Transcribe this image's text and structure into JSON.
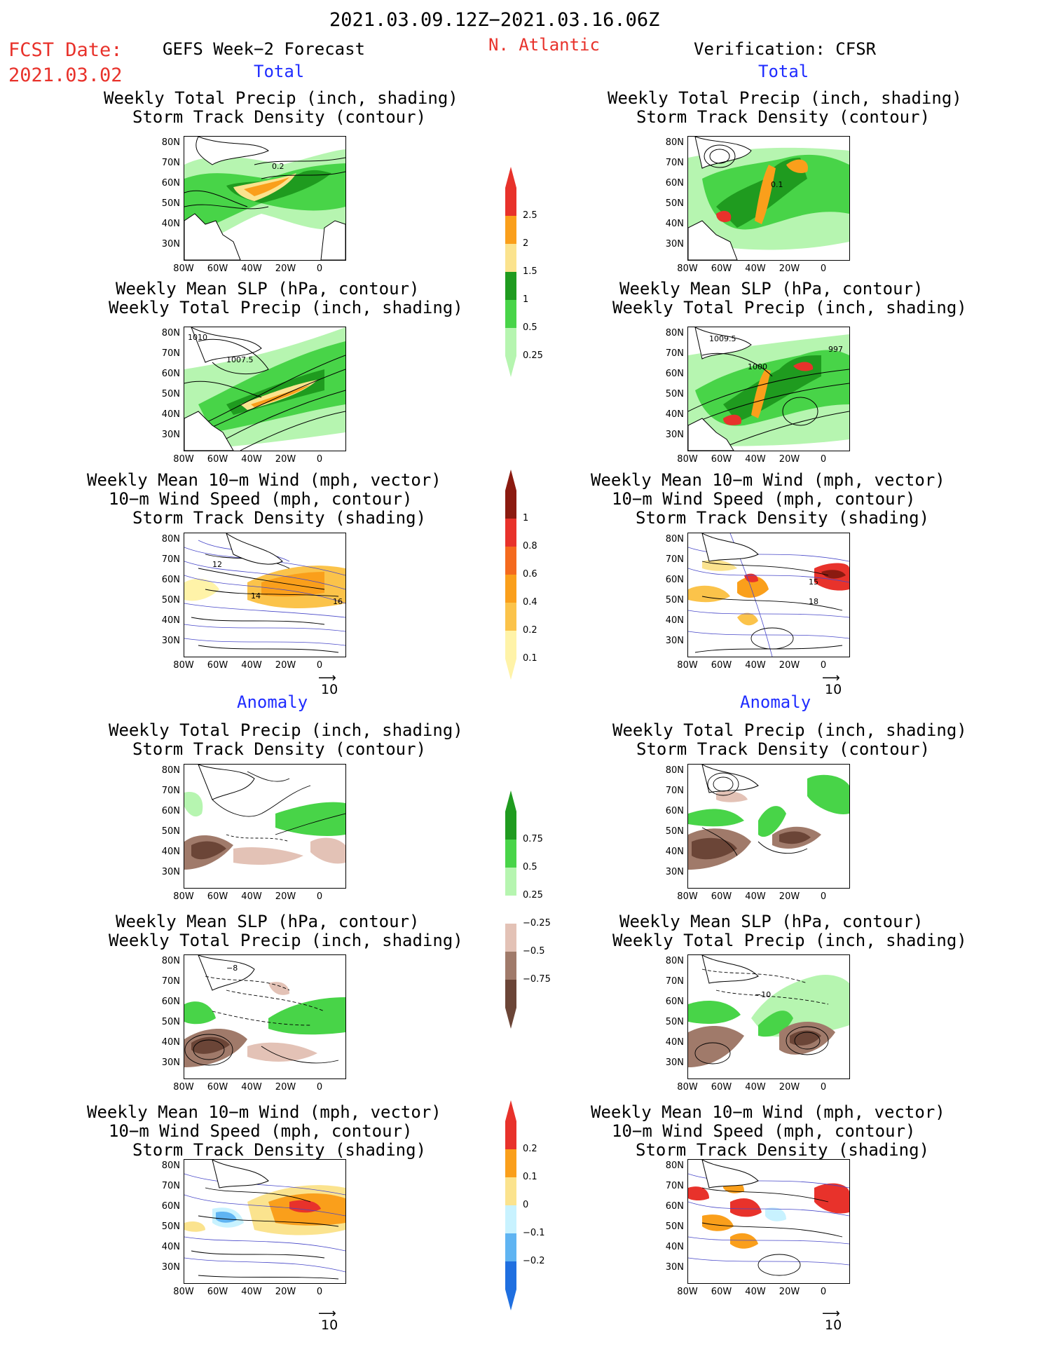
{
  "header": {
    "date_range": "2021.03.09.12Z−2021.03.16.06Z",
    "fcst_label": "FCST Date:",
    "fcst_date": "2021.03.02",
    "forecast_title": "GEFS Week−2 Forecast",
    "region": "N. Atlantic",
    "verification": "Verification: CFSR"
  },
  "sections": {
    "total": "Total",
    "anomaly": "Anomaly"
  },
  "panel_titles": {
    "precip_track": [
      "Weekly Total Precip (inch, shading)",
      "Storm Track Density (contour)"
    ],
    "slp_precip": [
      "Weekly Mean SLP (hPa, contour)",
      "Weekly Total Precip (inch, shading)"
    ],
    "wind": [
      "Weekly Mean 10−m Wind (mph, vector)",
      "10−m Wind Speed (mph, contour)",
      "Storm Track Density (shading)"
    ]
  },
  "axes": {
    "lat_labels": [
      "80N",
      "70N",
      "60N",
      "50N",
      "40N",
      "30N"
    ],
    "lon_labels": [
      "80W",
      "60W",
      "40W",
      "20W",
      "0"
    ]
  },
  "vector_ref": "10",
  "colorbars": {
    "precip_total": {
      "labels": [
        "2.5",
        "2",
        "1.5",
        "1",
        "0.5",
        "0.25"
      ],
      "colors": [
        "#e8322b",
        "#fa9f1b",
        "#fbe38e",
        "#1f9b1f",
        "#48d448",
        "#b6f5b0"
      ]
    },
    "track_total": {
      "labels": [
        "1",
        "0.8",
        "0.6",
        "0.4",
        "0.2",
        "0.1"
      ],
      "colors": [
        "#8b1a10",
        "#e8322b",
        "#f46a1e",
        "#fa9f1b",
        "#fbc34a",
        "#fff3a8"
      ]
    },
    "precip_anom": {
      "labels": [
        "0.75",
        "0.5",
        "0.25",
        "−0.25",
        "−0.5",
        "−0.75"
      ],
      "colors": [
        "#1f9b1f",
        "#48d448",
        "#b6f5b0",
        "#ffffff",
        "#e3c2b6",
        "#a07a6a",
        "#6b4537"
      ]
    },
    "track_anom": {
      "labels": [
        "0.2",
        "0.1",
        "0",
        "−0.1",
        "−0.2"
      ],
      "colors": [
        "#e8322b",
        "#fa9f1b",
        "#fbe38e",
        "#c8f2ff",
        "#5fb4f2",
        "#1f6fe0"
      ]
    }
  },
  "contour_labels": {
    "p1": "0.2",
    "p2": "0.1",
    "s1a": "1010",
    "s1b": "1007.5",
    "s2a": "1009.5",
    "s2b": "997",
    "s2c": "1000",
    "w1a": "14",
    "w1b": "16",
    "w1c": "12",
    "w2a": "15",
    "w2b": "18",
    "a1": "−8",
    "a2": "−10"
  }
}
